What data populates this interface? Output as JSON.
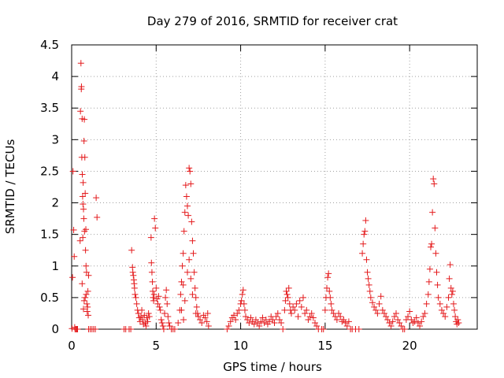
{
  "chart_data": {
    "type": "scatter",
    "title": "Day 279 of 2016, SRMTID for receiver crat",
    "xlabel": "GPS time / hours",
    "ylabel": "SRMTID / TECUs",
    "xlim": [
      0,
      24
    ],
    "ylim": [
      0,
      4.5
    ],
    "grid": true,
    "marker": "+",
    "marker_color": "#e41a1c",
    "x_ticks": [
      {
        "value": 0,
        "label": "0"
      },
      {
        "value": 5,
        "label": "5"
      },
      {
        "value": 10,
        "label": "10"
      },
      {
        "value": 15,
        "label": "15"
      },
      {
        "value": 20,
        "label": "20"
      }
    ],
    "y_ticks": [
      {
        "value": 0,
        "label": "0"
      },
      {
        "value": 0.5,
        "label": "0.5"
      },
      {
        "value": 1,
        "label": "1"
      },
      {
        "value": 1.5,
        "label": "1.5"
      },
      {
        "value": 2,
        "label": "2"
      },
      {
        "value": 2.5,
        "label": "2.5"
      },
      {
        "value": 3,
        "label": "3"
      },
      {
        "value": 3.5,
        "label": "3.5"
      },
      {
        "value": 4,
        "label": "4"
      },
      {
        "value": 4.5,
        "label": "4.5"
      }
    ],
    "series": [
      {
        "name": "SRMTID",
        "points": [
          [
            0.02,
            0.01
          ],
          [
            0.05,
            0.82
          ],
          [
            0.08,
            2.5
          ],
          [
            0.12,
            1.57
          ],
          [
            0.15,
            1.15
          ],
          [
            0.18,
            0.03
          ],
          [
            0.2,
            0.0
          ],
          [
            0.25,
            0.0
          ],
          [
            0.3,
            0.0
          ],
          [
            0.35,
            0.0
          ],
          [
            0.5,
            1.4
          ],
          [
            0.52,
            3.45
          ],
          [
            0.55,
            4.21
          ],
          [
            0.57,
            3.8
          ],
          [
            0.58,
            3.84
          ],
          [
            0.6,
            2.72
          ],
          [
            0.62,
            3.33
          ],
          [
            0.63,
            2.45
          ],
          [
            0.65,
            2.1
          ],
          [
            0.67,
            1.98
          ],
          [
            0.68,
            2.32
          ],
          [
            0.7,
            1.9
          ],
          [
            0.72,
            1.75
          ],
          [
            0.73,
            2.98
          ],
          [
            0.75,
            3.32
          ],
          [
            0.76,
            1.55
          ],
          [
            0.78,
            2.72
          ],
          [
            0.8,
            2.15
          ],
          [
            0.82,
            1.25
          ],
          [
            0.84,
            1.58
          ],
          [
            0.86,
            0.55
          ],
          [
            0.88,
            0.9
          ],
          [
            0.9,
            0.4
          ],
          [
            0.92,
            0.28
          ],
          [
            0.94,
            0.35
          ],
          [
            0.96,
            0.6
          ],
          [
            0.98,
            0.22
          ],
          [
            1.0,
            0.85
          ],
          [
            0.62,
            0.72
          ],
          [
            0.66,
            1.45
          ],
          [
            0.7,
            0.32
          ],
          [
            0.74,
            0.45
          ],
          [
            0.8,
            0.5
          ],
          [
            0.85,
            1.0
          ],
          [
            1.0,
            0.0
          ],
          [
            1.1,
            0.0
          ],
          [
            1.2,
            0.0
          ],
          [
            1.3,
            0.0
          ],
          [
            1.4,
            0.0
          ],
          [
            1.45,
            2.08
          ],
          [
            1.5,
            1.77
          ],
          [
            3.1,
            0.0
          ],
          [
            3.2,
            0.0
          ],
          [
            3.4,
            0.0
          ],
          [
            3.5,
            0.0
          ],
          [
            3.55,
            1.25
          ],
          [
            3.6,
            0.98
          ],
          [
            3.62,
            0.9
          ],
          [
            3.65,
            0.85
          ],
          [
            3.68,
            0.78
          ],
          [
            3.7,
            0.72
          ],
          [
            3.72,
            0.65
          ],
          [
            3.75,
            0.55
          ],
          [
            3.8,
            0.5
          ],
          [
            3.85,
            0.4
          ],
          [
            3.9,
            0.3
          ],
          [
            3.95,
            0.25
          ],
          [
            4.0,
            0.18
          ],
          [
            4.05,
            0.12
          ],
          [
            4.1,
            0.2
          ],
          [
            4.15,
            0.3
          ],
          [
            4.2,
            0.15
          ],
          [
            4.25,
            0.08
          ],
          [
            4.3,
            0.22
          ],
          [
            4.35,
            0.1
          ],
          [
            4.4,
            0.05
          ],
          [
            4.45,
            0.18
          ],
          [
            4.5,
            0.12
          ],
          [
            4.55,
            0.25
          ],
          [
            4.6,
            0.2
          ],
          [
            4.7,
            1.45
          ],
          [
            4.72,
            1.05
          ],
          [
            4.75,
            0.9
          ],
          [
            4.78,
            0.75
          ],
          [
            4.8,
            0.6
          ],
          [
            4.82,
            0.5
          ],
          [
            4.85,
            0.45
          ],
          [
            4.88,
            0.55
          ],
          [
            4.9,
            1.75
          ],
          [
            4.95,
            1.6
          ],
          [
            5.0,
            0.65
          ],
          [
            5.05,
            0.48
          ],
          [
            5.1,
            0.4
          ],
          [
            5.15,
            0.52
          ],
          [
            5.2,
            0.35
          ],
          [
            5.25,
            0.3
          ],
          [
            5.3,
            0.15
          ],
          [
            5.35,
            0.1
          ],
          [
            5.4,
            0.05
          ],
          [
            5.45,
            0.0
          ],
          [
            5.5,
            0.25
          ],
          [
            5.55,
            0.5
          ],
          [
            5.6,
            0.62
          ],
          [
            5.65,
            0.4
          ],
          [
            5.7,
            0.2
          ],
          [
            5.75,
            0.1
          ],
          [
            5.8,
            0.05
          ],
          [
            5.9,
            0.0
          ],
          [
            6.0,
            0.0
          ],
          [
            6.1,
            0.0
          ],
          [
            6.3,
            0.1
          ],
          [
            6.4,
            0.3
          ],
          [
            6.45,
            0.55
          ],
          [
            6.5,
            0.75
          ],
          [
            6.55,
            1.0
          ],
          [
            6.6,
            1.2
          ],
          [
            6.65,
            1.55
          ],
          [
            6.7,
            1.85
          ],
          [
            6.75,
            2.28
          ],
          [
            6.8,
            2.1
          ],
          [
            6.85,
            1.95
          ],
          [
            6.9,
            1.8
          ],
          [
            6.95,
            2.55
          ],
          [
            7.0,
            2.5
          ],
          [
            7.05,
            2.3
          ],
          [
            7.1,
            1.7
          ],
          [
            7.15,
            1.4
          ],
          [
            7.2,
            1.2
          ],
          [
            7.25,
            0.9
          ],
          [
            7.3,
            0.65
          ],
          [
            7.35,
            0.5
          ],
          [
            7.4,
            0.35
          ],
          [
            7.45,
            0.25
          ],
          [
            7.5,
            0.2
          ],
          [
            7.6,
            0.15
          ],
          [
            7.7,
            0.1
          ],
          [
            7.8,
            0.22
          ],
          [
            7.9,
            0.18
          ],
          [
            8.0,
            0.12
          ],
          [
            8.05,
            0.25
          ],
          [
            8.1,
            0.05
          ],
          [
            6.6,
            0.7
          ],
          [
            6.7,
            0.45
          ],
          [
            6.85,
            0.9
          ],
          [
            6.95,
            1.1
          ],
          [
            7.05,
            0.8
          ],
          [
            7.15,
            0.55
          ],
          [
            6.5,
            0.3
          ],
          [
            6.62,
            0.15
          ],
          [
            7.35,
            0.25
          ],
          [
            9.2,
            0.0
          ],
          [
            9.3,
            0.05
          ],
          [
            9.4,
            0.12
          ],
          [
            9.5,
            0.18
          ],
          [
            9.6,
            0.22
          ],
          [
            9.7,
            0.15
          ],
          [
            9.8,
            0.25
          ],
          [
            9.9,
            0.3
          ],
          [
            10.0,
            0.4
          ],
          [
            10.05,
            0.45
          ],
          [
            10.1,
            0.55
          ],
          [
            10.15,
            0.62
          ],
          [
            10.2,
            0.4
          ],
          [
            10.25,
            0.3
          ],
          [
            10.3,
            0.2
          ],
          [
            10.4,
            0.15
          ],
          [
            10.5,
            0.1
          ],
          [
            10.6,
            0.18
          ],
          [
            10.7,
            0.12
          ],
          [
            10.8,
            0.08
          ],
          [
            10.9,
            0.15
          ],
          [
            11.0,
            0.1
          ],
          [
            11.1,
            0.05
          ],
          [
            11.2,
            0.12
          ],
          [
            11.3,
            0.18
          ],
          [
            11.4,
            0.1
          ],
          [
            11.5,
            0.15
          ],
          [
            11.6,
            0.08
          ],
          [
            11.7,
            0.12
          ],
          [
            11.8,
            0.2
          ],
          [
            11.9,
            0.15
          ],
          [
            12.0,
            0.1
          ],
          [
            12.1,
            0.2
          ],
          [
            12.2,
            0.25
          ],
          [
            12.3,
            0.15
          ],
          [
            12.4,
            0.1
          ],
          [
            12.5,
            0.0
          ],
          [
            12.6,
            0.3
          ],
          [
            12.65,
            0.45
          ],
          [
            12.7,
            0.6
          ],
          [
            12.75,
            0.55
          ],
          [
            12.8,
            0.5
          ],
          [
            12.85,
            0.65
          ],
          [
            12.9,
            0.4
          ],
          [
            12.95,
            0.3
          ],
          [
            13.0,
            0.25
          ],
          [
            13.1,
            0.35
          ],
          [
            13.2,
            0.3
          ],
          [
            13.3,
            0.4
          ],
          [
            13.4,
            0.2
          ],
          [
            13.5,
            0.45
          ],
          [
            13.6,
            0.35
          ],
          [
            13.7,
            0.5
          ],
          [
            13.8,
            0.25
          ],
          [
            13.9,
            0.3
          ],
          [
            14.0,
            0.15
          ],
          [
            14.1,
            0.2
          ],
          [
            14.2,
            0.25
          ],
          [
            14.3,
            0.18
          ],
          [
            14.4,
            0.1
          ],
          [
            14.5,
            0.05
          ],
          [
            14.6,
            0.0
          ],
          [
            14.8,
            0.0
          ],
          [
            14.9,
            0.0
          ],
          [
            15.0,
            0.3
          ],
          [
            15.05,
            0.5
          ],
          [
            15.1,
            0.65
          ],
          [
            15.15,
            0.82
          ],
          [
            15.2,
            0.88
          ],
          [
            15.25,
            0.6
          ],
          [
            15.3,
            0.5
          ],
          [
            15.35,
            0.4
          ],
          [
            15.4,
            0.3
          ],
          [
            15.5,
            0.25
          ],
          [
            15.6,
            0.2
          ],
          [
            15.7,
            0.15
          ],
          [
            15.8,
            0.25
          ],
          [
            15.9,
            0.2
          ],
          [
            16.0,
            0.12
          ],
          [
            16.1,
            0.15
          ],
          [
            16.2,
            0.1
          ],
          [
            16.3,
            0.05
          ],
          [
            16.4,
            0.12
          ],
          [
            16.5,
            0.0
          ],
          [
            16.6,
            0.0
          ],
          [
            16.8,
            0.0
          ],
          [
            17.0,
            0.0
          ],
          [
            17.2,
            1.2
          ],
          [
            17.25,
            1.35
          ],
          [
            17.3,
            1.5
          ],
          [
            17.35,
            1.55
          ],
          [
            17.4,
            1.72
          ],
          [
            17.45,
            1.1
          ],
          [
            17.5,
            0.9
          ],
          [
            17.55,
            0.8
          ],
          [
            17.6,
            0.7
          ],
          [
            17.65,
            0.6
          ],
          [
            17.7,
            0.5
          ],
          [
            17.8,
            0.42
          ],
          [
            17.9,
            0.35
          ],
          [
            18.0,
            0.3
          ],
          [
            18.1,
            0.25
          ],
          [
            18.2,
            0.4
          ],
          [
            18.3,
            0.52
          ],
          [
            18.4,
            0.3
          ],
          [
            18.5,
            0.25
          ],
          [
            18.6,
            0.2
          ],
          [
            18.7,
            0.15
          ],
          [
            18.8,
            0.1
          ],
          [
            18.9,
            0.05
          ],
          [
            19.0,
            0.12
          ],
          [
            19.1,
            0.2
          ],
          [
            19.2,
            0.25
          ],
          [
            19.3,
            0.15
          ],
          [
            19.4,
            0.1
          ],
          [
            19.5,
            0.05
          ],
          [
            19.6,
            0.0
          ],
          [
            19.7,
            0.0
          ],
          [
            19.8,
            0.15
          ],
          [
            19.9,
            0.2
          ],
          [
            20.0,
            0.28
          ],
          [
            20.1,
            0.15
          ],
          [
            20.2,
            0.1
          ],
          [
            20.3,
            0.12
          ],
          [
            20.4,
            0.18
          ],
          [
            20.5,
            0.1
          ],
          [
            20.6,
            0.05
          ],
          [
            20.7,
            0.12
          ],
          [
            20.8,
            0.2
          ],
          [
            20.9,
            0.25
          ],
          [
            21.0,
            0.4
          ],
          [
            21.1,
            0.55
          ],
          [
            21.15,
            0.75
          ],
          [
            21.2,
            0.95
          ],
          [
            21.25,
            1.3
          ],
          [
            21.3,
            1.35
          ],
          [
            21.35,
            1.85
          ],
          [
            21.4,
            2.38
          ],
          [
            21.45,
            2.3
          ],
          [
            21.5,
            1.6
          ],
          [
            21.55,
            1.2
          ],
          [
            21.6,
            0.9
          ],
          [
            21.65,
            0.7
          ],
          [
            21.7,
            0.5
          ],
          [
            21.8,
            0.4
          ],
          [
            21.9,
            0.3
          ],
          [
            22.0,
            0.25
          ],
          [
            22.1,
            0.2
          ],
          [
            22.2,
            0.35
          ],
          [
            22.3,
            0.5
          ],
          [
            22.35,
            0.8
          ],
          [
            22.4,
            1.02
          ],
          [
            22.45,
            0.65
          ],
          [
            22.5,
            0.55
          ],
          [
            22.55,
            0.6
          ],
          [
            22.6,
            0.4
          ],
          [
            22.65,
            0.3
          ],
          [
            22.7,
            0.2
          ],
          [
            22.75,
            0.12
          ],
          [
            22.8,
            0.08
          ],
          [
            22.85,
            0.15
          ],
          [
            22.9,
            0.1
          ]
        ]
      }
    ]
  }
}
